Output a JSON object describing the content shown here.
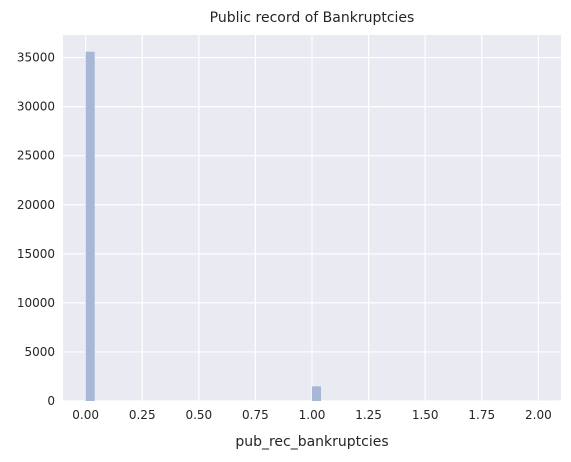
{
  "chart_data": {
    "type": "bar",
    "title": "Public record of Bankruptcies",
    "xlabel": "pub_rec_bankruptcies",
    "ylabel": "",
    "xlim": [
      -0.1,
      2.1
    ],
    "ylim": [
      0,
      37300
    ],
    "x_ticks": [
      "0.00",
      "0.25",
      "0.50",
      "0.75",
      "1.00",
      "1.25",
      "1.50",
      "1.75",
      "2.00"
    ],
    "x_tick_values": [
      0,
      0.25,
      0.5,
      0.75,
      1.0,
      1.25,
      1.5,
      1.75,
      2.0
    ],
    "y_ticks": [
      "0",
      "5000",
      "10000",
      "15000",
      "20000",
      "25000",
      "30000",
      "35000"
    ],
    "y_tick_values": [
      0,
      5000,
      10000,
      15000,
      20000,
      25000,
      30000,
      35000
    ],
    "bin_width": 0.04,
    "bins": [
      {
        "x0": 0.0,
        "value": 35600
      },
      {
        "x0": 1.0,
        "value": 1500
      },
      {
        "x0": 2.0,
        "value": 5
      }
    ],
    "grid": true,
    "colors": {
      "background": "#eaeaf2",
      "grid": "#ffffff",
      "bar": "#a8b7d6",
      "text": "#262626"
    }
  }
}
